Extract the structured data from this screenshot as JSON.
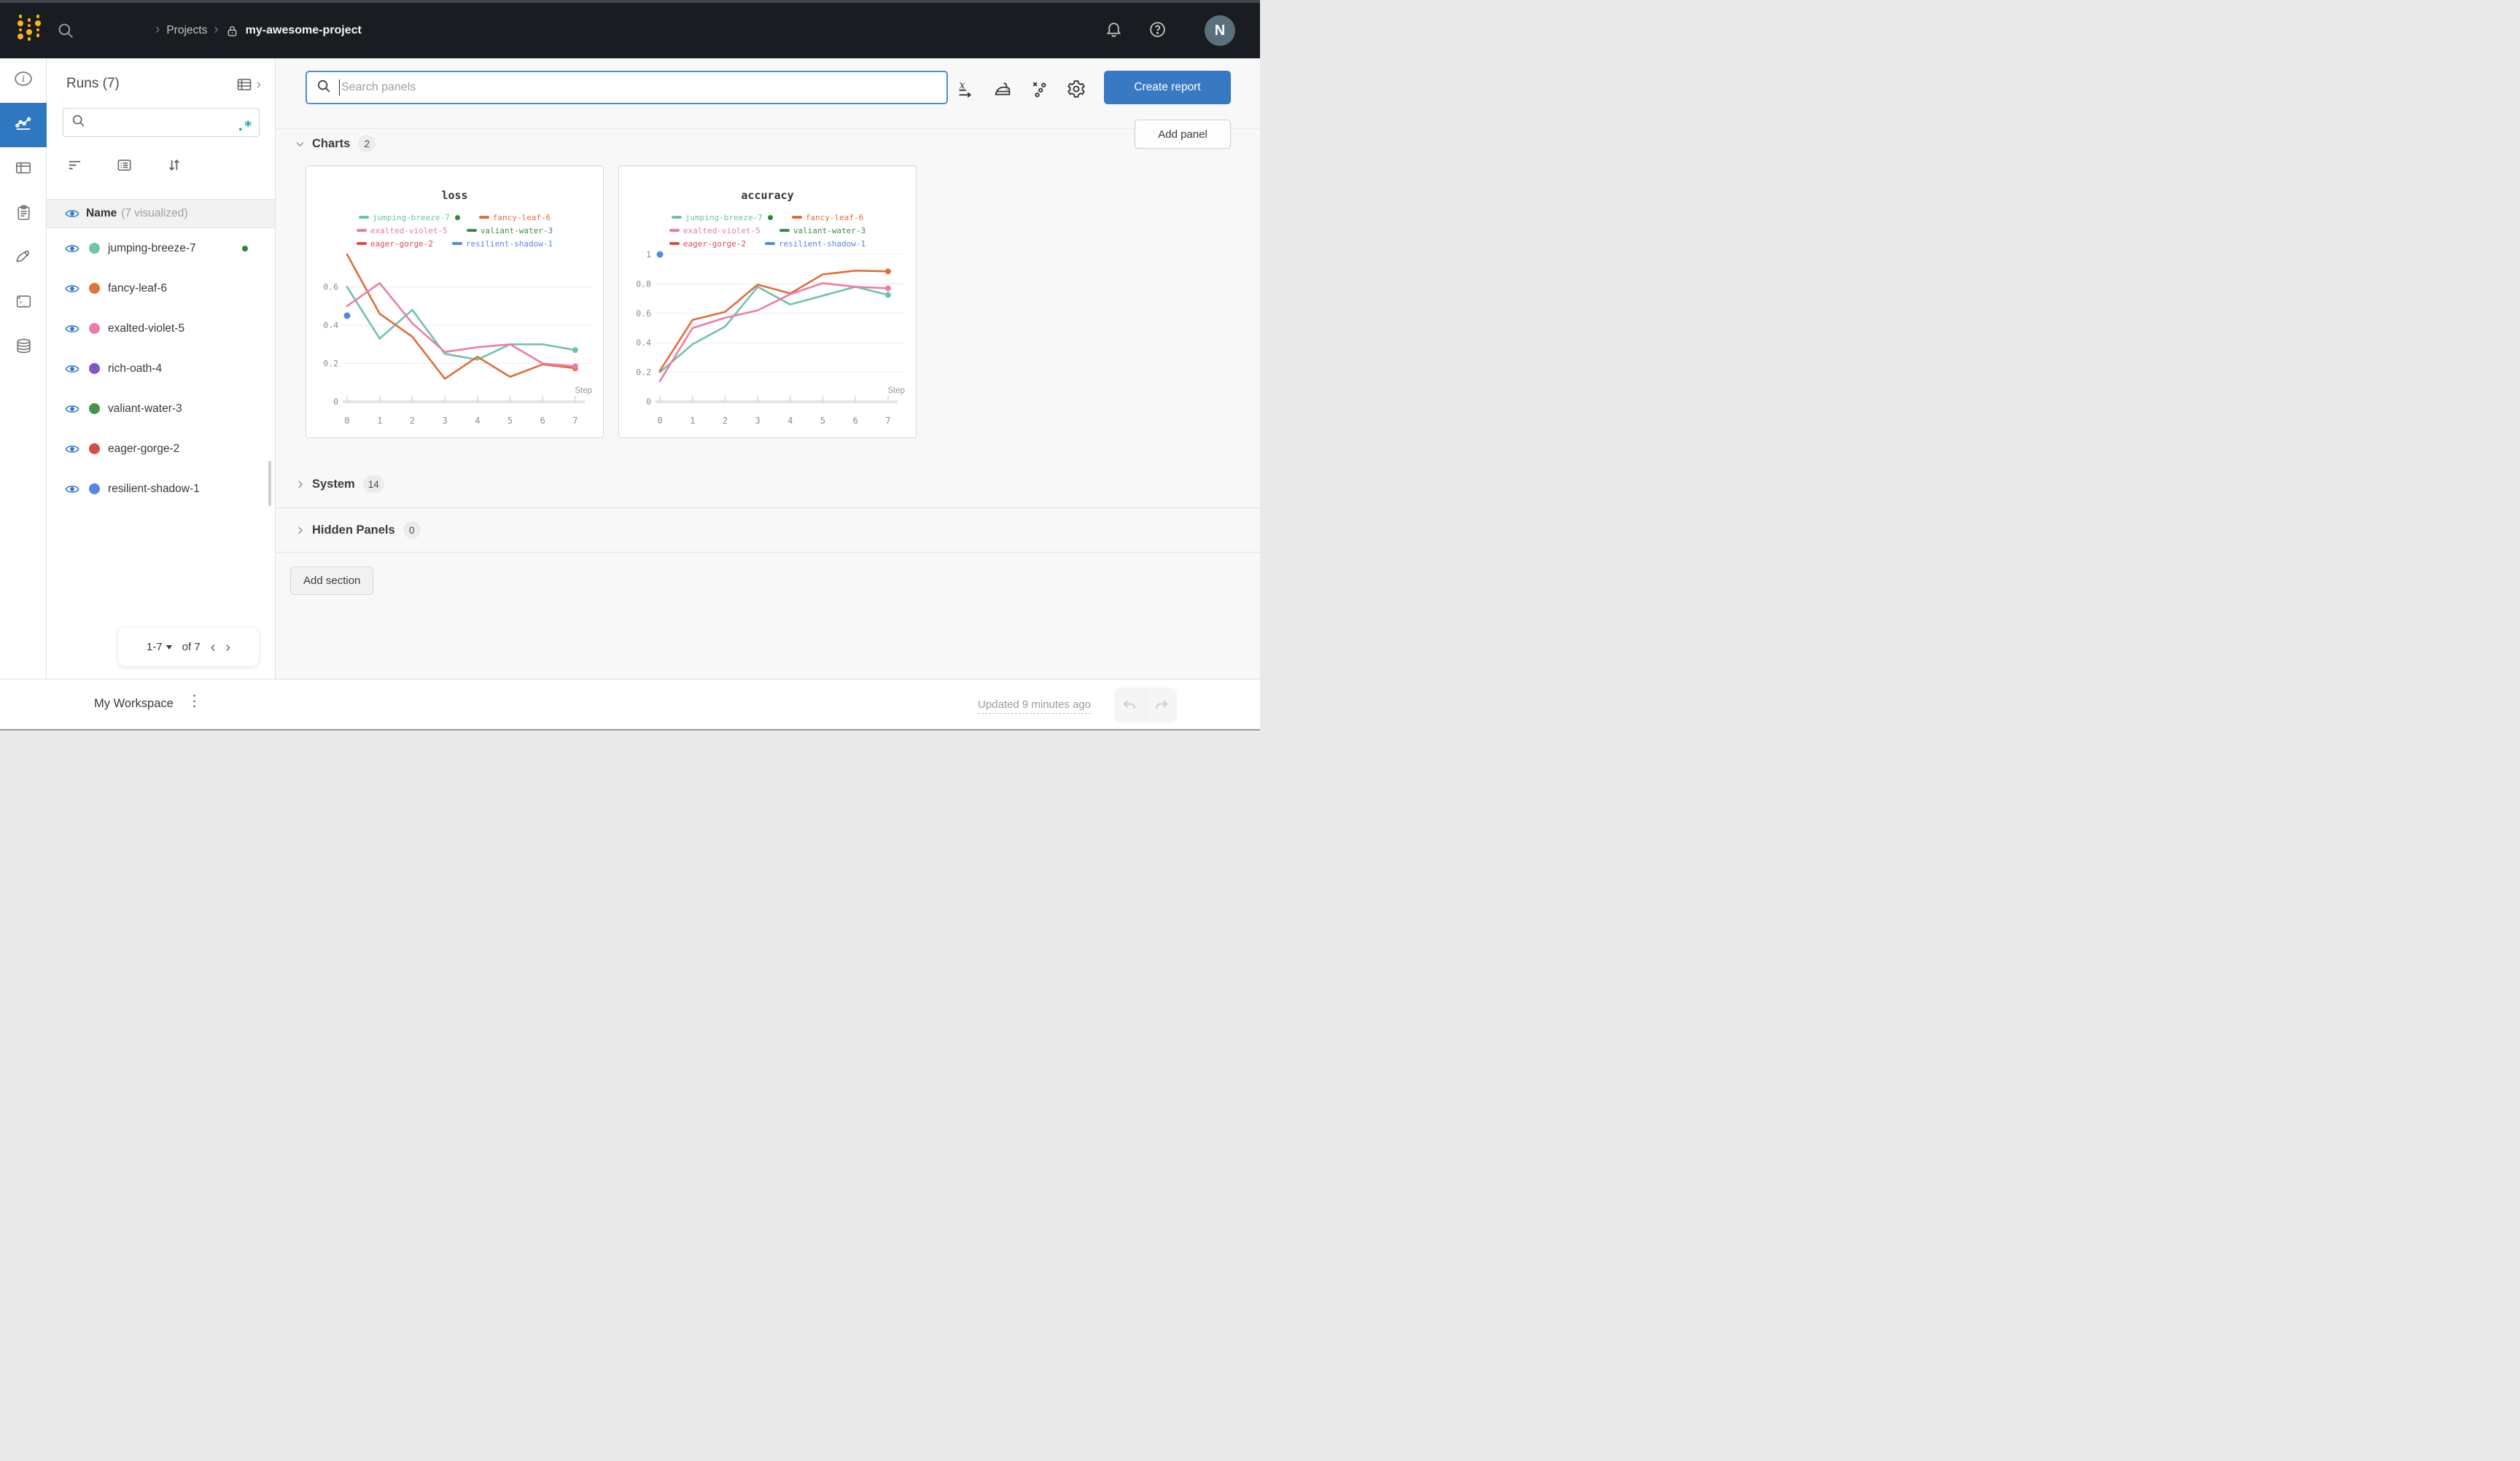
{
  "topbar": {
    "breadcrumb": {
      "projects_label": "Projects",
      "project_name": "my-awesome-project"
    },
    "avatar_initial": "N",
    "icons": [
      "wandb-logo",
      "search-icon",
      "lock-icon",
      "bell-icon",
      "help-icon"
    ]
  },
  "rail_icons": [
    "info-icon",
    "workspace-chart-icon",
    "table-icon",
    "clipboard-icon",
    "sweep-brush-icon",
    "terminal-icon",
    "artifacts-database-icon"
  ],
  "runs_panel": {
    "title": "Runs (7)",
    "header": {
      "name_label": "Name",
      "visualized_label": "(7 visualized)"
    },
    "runs": [
      {
        "name": "jumping-breeze-7",
        "color": "#72c4ae",
        "running": true
      },
      {
        "name": "fancy-leaf-6",
        "color": "#e0733c"
      },
      {
        "name": "exalted-violet-5",
        "color": "#ec7cab"
      },
      {
        "name": "rich-oath-4",
        "color": "#8355c7"
      },
      {
        "name": "valiant-water-3",
        "color": "#469450"
      },
      {
        "name": "eager-gorge-2",
        "color": "#d94b48"
      },
      {
        "name": "resilient-shadow-1",
        "color": "#5488e1"
      }
    ],
    "pagination": {
      "range": "1-7",
      "of_label": "of 7"
    }
  },
  "main": {
    "search": {
      "placeholder": "Search panels"
    },
    "toolbar_icons": [
      "x-axis-icon",
      "smoothing-iron-icon",
      "outliers-icon",
      "settings-gear-icon"
    ],
    "create_report_label": "Create report",
    "sections": {
      "charts": {
        "label": "Charts",
        "count": "2",
        "add_panel_label": "Add panel"
      },
      "system": {
        "label": "System",
        "count": "14"
      },
      "hidden": {
        "label": "Hidden Panels",
        "count": "0"
      }
    },
    "add_section_label": "Add section"
  },
  "bottombar": {
    "workspace_label": "My Workspace",
    "updated_label": "Updated 9 minutes ago"
  },
  "accent_colors": {
    "primary_blue": "#2e78c2",
    "button_blue": "#3779c2",
    "regex_teal": "#12a3ae",
    "running_green": "#2b8a36"
  },
  "chart_data": [
    {
      "type": "line",
      "title": "loss",
      "xlabel": "Step",
      "x": [
        0,
        1,
        2,
        3,
        4,
        5,
        6,
        7
      ],
      "xticks": [
        0,
        1,
        2,
        3,
        4,
        5,
        6,
        7
      ],
      "yticks": [
        0,
        0.2,
        0.4,
        0.6
      ],
      "ylim": [
        0,
        0.77
      ],
      "grid": true,
      "legend_position": "top",
      "series": [
        {
          "name": "jumping-breeze-7",
          "color": "#6fc3ae",
          "running": true,
          "values": [
            0.6,
            0.33,
            0.48,
            0.25,
            0.22,
            0.3,
            0.3,
            0.27
          ]
        },
        {
          "name": "fancy-leaf-6",
          "color": "#df6e3c",
          "values": [
            0.77,
            0.46,
            0.34,
            0.12,
            0.235,
            0.13,
            0.195,
            0.175
          ]
        },
        {
          "name": "exalted-violet-5",
          "color": "#ec7cab",
          "values": [
            0.5,
            0.62,
            0.41,
            0.26,
            0.285,
            0.3,
            0.2,
            0.185
          ]
        },
        {
          "name": "valiant-water-3",
          "color": "#3e8b4b",
          "values": []
        },
        {
          "name": "eager-gorge-2",
          "color": "#da4c48",
          "values": []
        },
        {
          "name": "resilient-shadow-1",
          "color": "#5488e1",
          "values": [],
          "point": {
            "x": 0,
            "y": 0.45
          }
        }
      ]
    },
    {
      "type": "line",
      "title": "accuracy",
      "xlabel": "Step",
      "x": [
        0,
        1,
        2,
        3,
        4,
        5,
        6,
        7
      ],
      "xticks": [
        0,
        1,
        2,
        3,
        4,
        5,
        6,
        7
      ],
      "yticks": [
        0,
        0.2,
        0.4,
        0.6,
        0.8,
        1
      ],
      "ylim": [
        0,
        1.0
      ],
      "grid": true,
      "legend_position": "top",
      "series": [
        {
          "name": "jumping-breeze-7",
          "color": "#6fc3ae",
          "running": true,
          "values": [
            0.2,
            0.39,
            0.51,
            0.78,
            0.66,
            0.72,
            0.78,
            0.725
          ]
        },
        {
          "name": "fancy-leaf-6",
          "color": "#df6e3c",
          "values": [
            0.21,
            0.555,
            0.61,
            0.795,
            0.735,
            0.865,
            0.89,
            0.885
          ]
        },
        {
          "name": "exalted-violet-5",
          "color": "#ec7cab",
          "values": [
            0.14,
            0.5,
            0.57,
            0.62,
            0.73,
            0.805,
            0.78,
            0.77
          ]
        },
        {
          "name": "valiant-water-3",
          "color": "#3e8b4b",
          "values": []
        },
        {
          "name": "eager-gorge-2",
          "color": "#da4c48",
          "values": []
        },
        {
          "name": "resilient-shadow-1",
          "color": "#5488e1",
          "values": [],
          "point": {
            "x": 0,
            "y": 1.0
          }
        }
      ]
    }
  ]
}
